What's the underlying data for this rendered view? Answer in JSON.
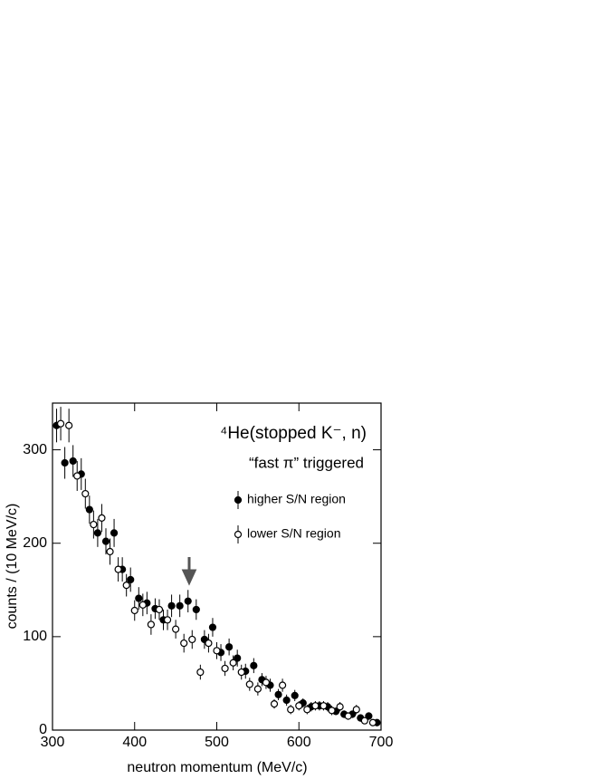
{
  "chart_data": {
    "type": "scatter",
    "title": "⁴He(stopped K⁻, n)",
    "subtitle": "“fast π” triggered",
    "x_label": "neutron momentum (MeV/c)",
    "y_label": "counts / (10 MeV/c)",
    "xlim": [
      300,
      700
    ],
    "xticks": [
      300,
      400,
      500,
      600,
      700
    ],
    "ylim": [
      0,
      350
    ],
    "yticks": [
      0,
      100,
      200,
      300
    ],
    "series": [
      {
        "name": "higher S/N region",
        "color": "#000000",
        "marker": "filled",
        "x": [
          305,
          315,
          325,
          335,
          345,
          355,
          365,
          375,
          385,
          395,
          405,
          415,
          425,
          435,
          445,
          455,
          465,
          475,
          485,
          495,
          505,
          515,
          525,
          535,
          545,
          555,
          565,
          575,
          585,
          595,
          605,
          615,
          625,
          635,
          645,
          655,
          665,
          675,
          685,
          695
        ],
        "values": [
          326,
          286,
          288,
          274,
          236,
          211,
          202,
          211,
          172,
          161,
          141,
          136,
          130,
          118,
          133,
          133,
          138,
          129,
          97,
          110,
          83,
          89,
          77,
          63,
          69,
          54,
          48,
          38,
          32,
          37,
          29,
          25,
          26,
          25,
          20,
          17,
          17,
          13,
          15,
          8
        ],
        "errors": [
          18,
          17,
          17,
          17,
          15,
          15,
          14,
          15,
          13,
          13,
          12,
          12,
          11,
          11,
          12,
          12,
          12,
          11,
          10,
          10,
          9,
          9,
          9,
          8,
          8,
          7,
          7,
          6,
          6,
          6,
          5,
          5,
          5,
          5,
          4,
          4,
          4,
          4,
          4,
          3
        ]
      },
      {
        "name": "lower S/N region",
        "color": "#000000",
        "marker": "open",
        "x": [
          310,
          320,
          330,
          340,
          350,
          360,
          370,
          380,
          390,
          400,
          410,
          420,
          430,
          440,
          450,
          460,
          470,
          480,
          490,
          500,
          510,
          520,
          530,
          540,
          550,
          560,
          570,
          580,
          590,
          600,
          610,
          620,
          630,
          640,
          650,
          660,
          670,
          680,
          690
        ],
        "values": [
          328,
          326,
          272,
          253,
          220,
          227,
          191,
          172,
          155,
          128,
          134,
          113,
          129,
          118,
          108,
          93,
          97,
          62,
          93,
          85,
          66,
          72,
          62,
          49,
          44,
          51,
          28,
          48,
          22,
          26,
          22,
          26,
          26,
          21,
          25,
          15,
          22,
          10,
          8
        ],
        "errors": [
          18,
          18,
          16,
          16,
          15,
          15,
          14,
          13,
          12,
          11,
          12,
          11,
          11,
          11,
          10,
          10,
          10,
          8,
          10,
          9,
          8,
          8,
          8,
          7,
          7,
          7,
          5,
          7,
          5,
          5,
          5,
          5,
          5,
          5,
          5,
          4,
          5,
          3,
          3
        ]
      }
    ]
  }
}
